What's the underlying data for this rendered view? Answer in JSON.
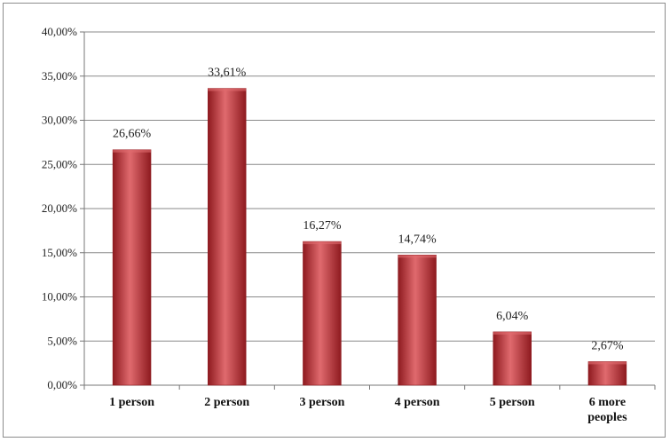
{
  "chart_data": {
    "type": "bar",
    "title": "",
    "xlabel": "",
    "ylabel": "",
    "categories": [
      [
        "1 person"
      ],
      [
        "2 person"
      ],
      [
        "3 person"
      ],
      [
        "4 person"
      ],
      [
        "5 person"
      ],
      [
        "6 more",
        "peoples"
      ]
    ],
    "values": [
      26.66,
      33.61,
      16.27,
      14.74,
      6.04,
      2.67
    ],
    "data_labels": [
      "26,66%",
      "33,61%",
      "16,27%",
      "14,74%",
      "6,04%",
      "2,67%"
    ],
    "ylim": [
      0,
      40
    ],
    "yticks": [
      0,
      5,
      10,
      15,
      20,
      25,
      30,
      35,
      40
    ],
    "ytick_labels": [
      "0,00%",
      "5,00%",
      "10,00%",
      "15,00%",
      "20,00%",
      "25,00%",
      "30,00%",
      "35,00%",
      "40,00%"
    ],
    "grid": true,
    "legend": "none",
    "colors": {
      "bar": "#c0282d",
      "bar_dark": "#8e1a1f",
      "bar_light": "#e06a6e",
      "grid": "#8a8a8a"
    }
  }
}
